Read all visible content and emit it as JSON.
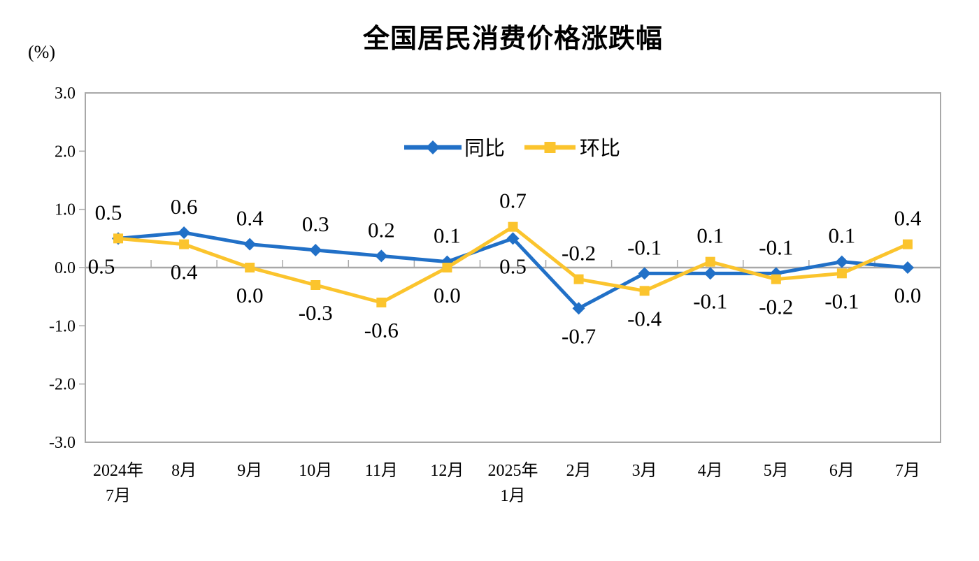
{
  "chart_data": {
    "type": "line",
    "title": "全国居民消费价格涨跌幅",
    "y_unit_label": "(%)",
    "categories": [
      "2024年\n7月",
      "8月",
      "9月",
      "10月",
      "11月",
      "12月",
      "2025年\n1月",
      "2月",
      "3月",
      "4月",
      "5月",
      "6月",
      "7月"
    ],
    "series": [
      {
        "name": "同比",
        "marker": "diamond",
        "color": "#2170C7",
        "values": [
          0.5,
          0.6,
          0.4,
          0.3,
          0.2,
          0.1,
          0.5,
          -0.7,
          -0.1,
          -0.1,
          -0.1,
          0.1,
          0.0
        ],
        "label_side": [
          "above",
          "above",
          "above",
          "above",
          "above",
          "above",
          "below",
          "below",
          "above",
          "below",
          "above",
          "above",
          "below"
        ]
      },
      {
        "name": "环比",
        "marker": "square",
        "color": "#FBC42D",
        "values": [
          0.5,
          0.4,
          0.0,
          -0.3,
          -0.6,
          0.0,
          0.7,
          -0.2,
          -0.4,
          0.1,
          -0.2,
          -0.1,
          0.4
        ],
        "label_side": [
          "below",
          "below",
          "below",
          "below",
          "below",
          "below",
          "above",
          "above",
          "below",
          "above",
          "below",
          "below",
          "above"
        ]
      }
    ],
    "ylim": [
      -3.0,
      3.0
    ],
    "y_ticks": [
      "3.0",
      "2.0",
      "1.0",
      "0.0",
      "-1.0",
      "-2.0",
      "-3.0"
    ],
    "grid": false,
    "legend_position": "top-center-inside",
    "axis_color": "#A8A8A8",
    "label_color": "#000000",
    "background": "#FFFFFF"
  }
}
